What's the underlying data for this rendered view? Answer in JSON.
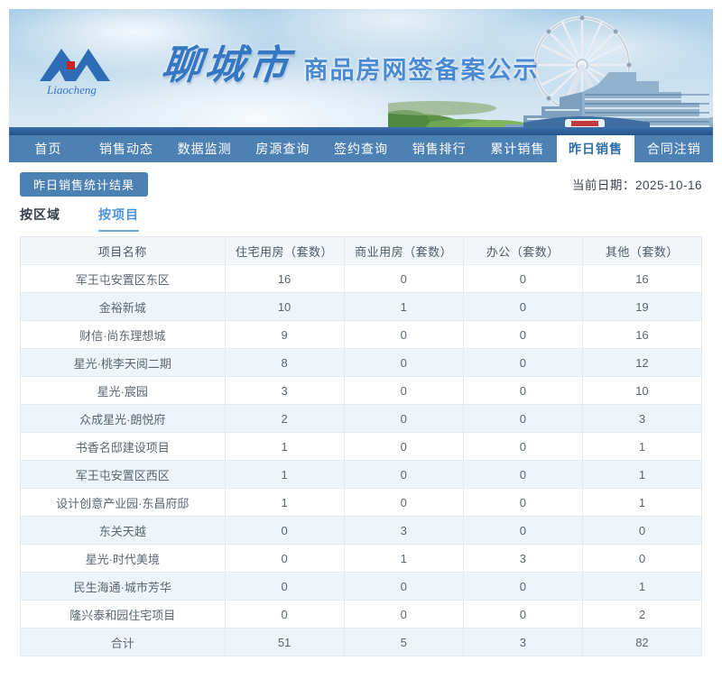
{
  "header": {
    "logo_script": "Liaocheng",
    "title_calligraphy": "聊城市",
    "title_main": "商品房网签备案公示"
  },
  "nav": {
    "items": [
      {
        "label": "首页",
        "active": false
      },
      {
        "label": "销售动态",
        "active": false
      },
      {
        "label": "数据监测",
        "active": false
      },
      {
        "label": "房源查询",
        "active": false
      },
      {
        "label": "签约查询",
        "active": false
      },
      {
        "label": "销售排行",
        "active": false
      },
      {
        "label": "累计销售",
        "active": false
      },
      {
        "label": "昨日销售",
        "active": true
      },
      {
        "label": "合同注销",
        "active": false
      }
    ]
  },
  "toolbar": {
    "stats_button_label": "昨日销售统计结果",
    "date_label": "当前日期：",
    "date_value": "2025-10-16"
  },
  "subtabs": [
    {
      "label": "按区域",
      "active": false
    },
    {
      "label": "按项目",
      "active": true
    }
  ],
  "table": {
    "columns": [
      "项目名称",
      "住宅用房（套数）",
      "商业用房（套数）",
      "办公（套数）",
      "其他（套数）"
    ],
    "rows": [
      [
        "军王屯安置区东区",
        "16",
        "0",
        "0",
        "16"
      ],
      [
        "金裕新城",
        "10",
        "1",
        "0",
        "19"
      ],
      [
        "财信·尚东理想城",
        "9",
        "0",
        "0",
        "16"
      ],
      [
        "星光·桃李天阅二期",
        "8",
        "0",
        "0",
        "12"
      ],
      [
        "星光·宸园",
        "3",
        "0",
        "0",
        "10"
      ],
      [
        "众成星光·朗悦府",
        "2",
        "0",
        "0",
        "3"
      ],
      [
        "书香名邸建设项目",
        "1",
        "0",
        "0",
        "1"
      ],
      [
        "军王屯安置区西区",
        "1",
        "0",
        "0",
        "1"
      ],
      [
        "设计创意产业园·东昌府邸",
        "1",
        "0",
        "0",
        "1"
      ],
      [
        "东关天越",
        "0",
        "3",
        "0",
        "0"
      ],
      [
        "星光·时代美境",
        "0",
        "1",
        "3",
        "0"
      ],
      [
        "民生海通·城市芳华",
        "0",
        "0",
        "0",
        "1"
      ],
      [
        "隆兴泰和园住宅项目",
        "0",
        "0",
        "0",
        "2"
      ]
    ],
    "total_row": [
      "合计",
      "51",
      "5",
      "3",
      "82"
    ]
  },
  "colors": {
    "nav_blue": "#4e81b3",
    "active_tab_text": "#2f6da8",
    "accent_blue": "#4a90d9",
    "title_blue": "#4a8ad2",
    "alt_row_bg": "#edf5fb",
    "header_row_bg": "#f2f6f9",
    "table_border": "#e4eaf1",
    "water_band": "#24548c",
    "logo_red": "#cc2222"
  }
}
